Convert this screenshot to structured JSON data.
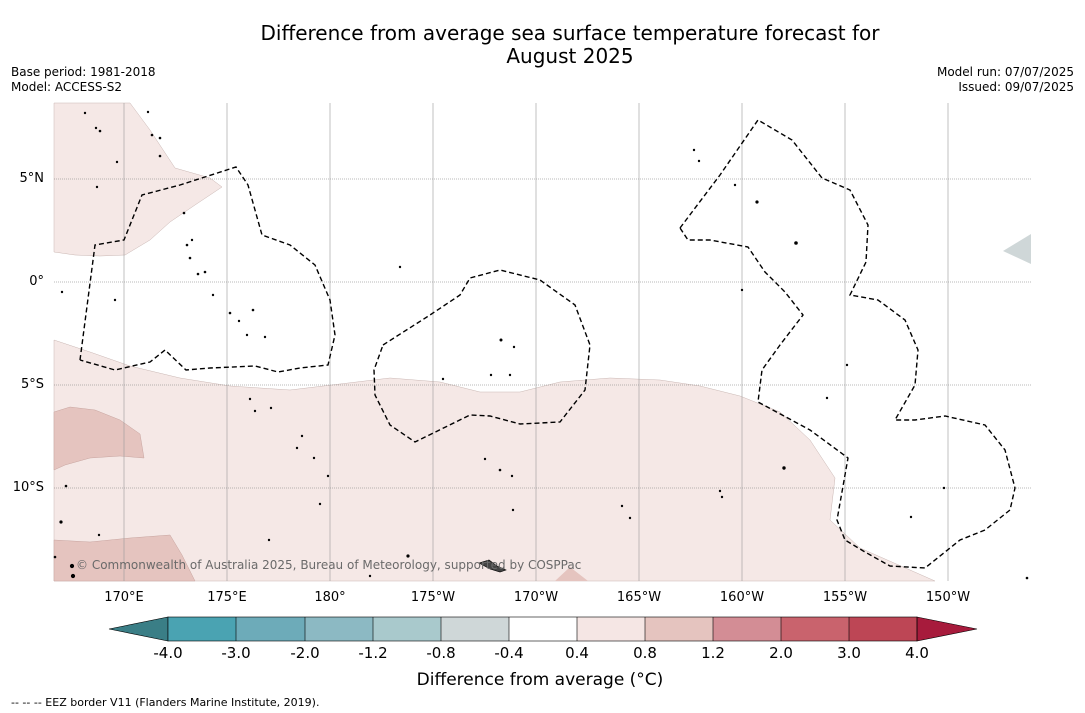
{
  "title_line1": "Difference from average sea surface temperature forecast for",
  "title_line2": "August 2025",
  "base_period": "Base period: 1981-2018",
  "model": "Model: ACCESS-S2",
  "model_run": "Model run: 07/07/2025",
  "issued": "Issued: 09/07/2025",
  "latitude_labels": [
    "5°N",
    "0°",
    "5°S",
    "10°S"
  ],
  "longitude_labels": [
    "170°E",
    "175°E",
    "180°",
    "175°W",
    "170°W",
    "165°W",
    "160°W",
    "155°W",
    "150°W"
  ],
  "copyright": "© Commonwealth of Australia 2025, Bureau of Meteorology, supported by COSPPac",
  "colorbar": {
    "labels": [
      "-4.0",
      "-3.0",
      "-2.0",
      "-1.2",
      "-0.8",
      "-0.4",
      "0.4",
      "0.8",
      "1.2",
      "2.0",
      "3.0",
      "4.0"
    ],
    "colors": [
      "#3a7e86",
      "#4aa3b2",
      "#6dabb9",
      "#8cb9c3",
      "#a9c9cc",
      "#cfd7d8",
      "#ffffff",
      "#f5e6e4",
      "#e5c4bf",
      "#d38d95",
      "#c9636d",
      "#bd4655",
      "#a71b3c"
    ],
    "title": "Difference from average (°C)"
  },
  "footnote": "--  --  -- EEZ border V11 (Flanders Marine Institute, 2019)."
}
